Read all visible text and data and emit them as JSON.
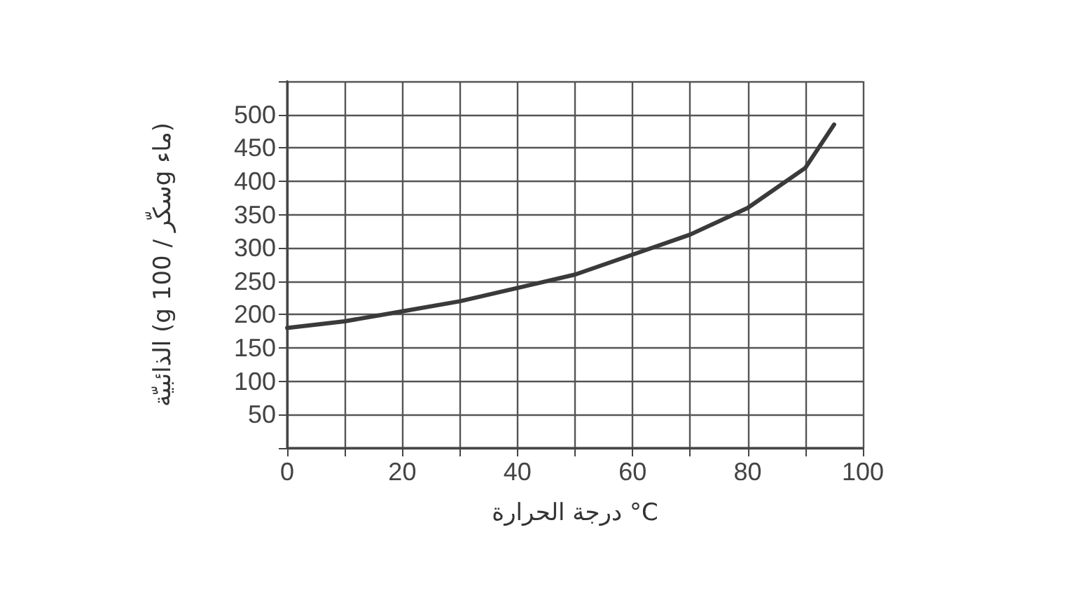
{
  "chart_data": {
    "type": "line",
    "xlabel": "درجة الحرارة °C",
    "ylabel": "الذائبيّة (g سكّر / 100g ماء)",
    "x": [
      0,
      10,
      20,
      30,
      40,
      50,
      60,
      70,
      80,
      90,
      95
    ],
    "series": [
      {
        "color": "#3a3a3a",
        "values": [
          180,
          190,
          205,
          220,
          240,
          260,
          290,
          320,
          360,
          420,
          485
        ]
      }
    ],
    "xlim": [
      0,
      100
    ],
    "xticks": [
      0,
      {
        "value": 10,
        "label": null
      },
      20,
      {
        "value": 30,
        "label": null
      },
      40,
      {
        "value": 50,
        "label": null
      },
      60,
      {
        "value": 70,
        "label": null
      },
      80,
      {
        "value": 90,
        "label": null
      },
      100
    ],
    "ylim": [
      0,
      550
    ],
    "yticks": [
      {
        "value": 0,
        "label": null
      },
      50,
      100,
      150,
      200,
      250,
      300,
      350,
      400,
      450,
      500,
      {
        "value": 550,
        "label": null
      }
    ],
    "grid": true,
    "marker": "none",
    "line_style": "solid"
  }
}
